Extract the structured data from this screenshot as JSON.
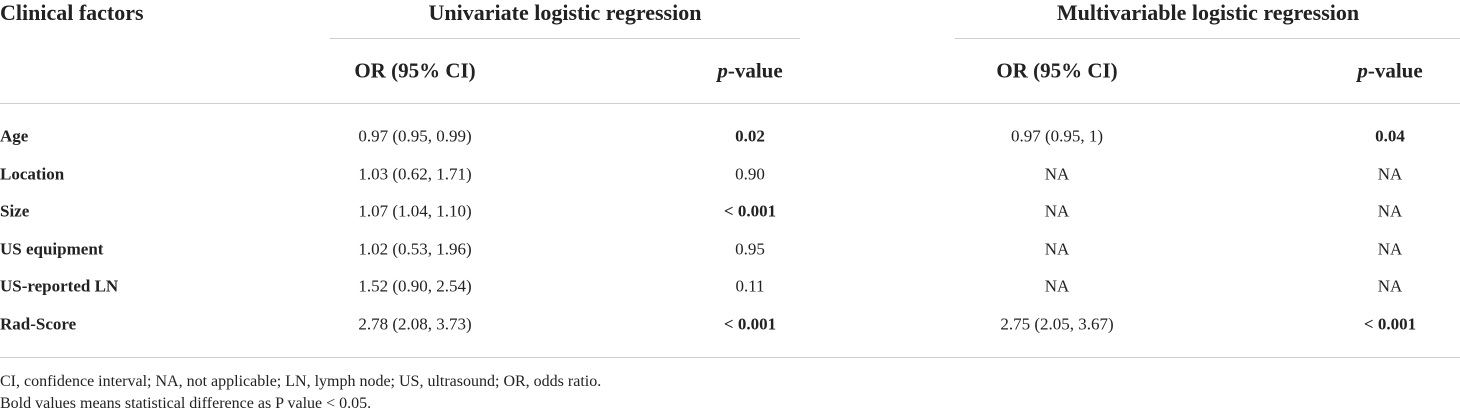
{
  "table": {
    "header": {
      "factor": "Clinical factors",
      "groups": [
        "Univariate logistic regression",
        "Multivariable logistic regression"
      ]
    },
    "subheader": [
      "OR (95% CI)",
      "p-value",
      "OR (95% CI)",
      "p-value"
    ],
    "rows": [
      {
        "cells": [
          "Age",
          "0.97 (0.95, 0.99)",
          "0.02",
          "0.97 (0.95, 1)",
          "0.04"
        ],
        "bold": [
          0,
          2,
          4
        ]
      },
      {
        "cells": [
          "Location",
          "1.03 (0.62, 1.71)",
          "0.90",
          "NA",
          "NA"
        ],
        "bold": [
          0
        ]
      },
      {
        "cells": [
          "Size",
          "1.07 (1.04, 1.10)",
          "< 0.001",
          "NA",
          "NA"
        ],
        "bold": [
          0,
          2
        ]
      },
      {
        "cells": [
          "US equipment",
          "1.02 (0.53, 1.96)",
          "0.95",
          "NA",
          "NA"
        ],
        "bold": [
          0
        ]
      },
      {
        "cells": [
          "US-reported LN",
          "1.52 (0.90, 2.54)",
          "0.11",
          "NA",
          "NA"
        ],
        "bold": [
          0
        ]
      },
      {
        "cells": [
          "Rad-Score",
          "2.78 (2.08, 3.73)",
          "< 0.001",
          "2.75 (2.05, 3.67)",
          "< 0.001"
        ],
        "bold": [
          0,
          2,
          4
        ]
      }
    ],
    "footnotes": [
      "CI, confidence interval; NA, not applicable; LN, lymph node; US, ultrasound; OR, odds ratio.",
      "Bold values means statistical difference as P value < 0.05."
    ]
  }
}
